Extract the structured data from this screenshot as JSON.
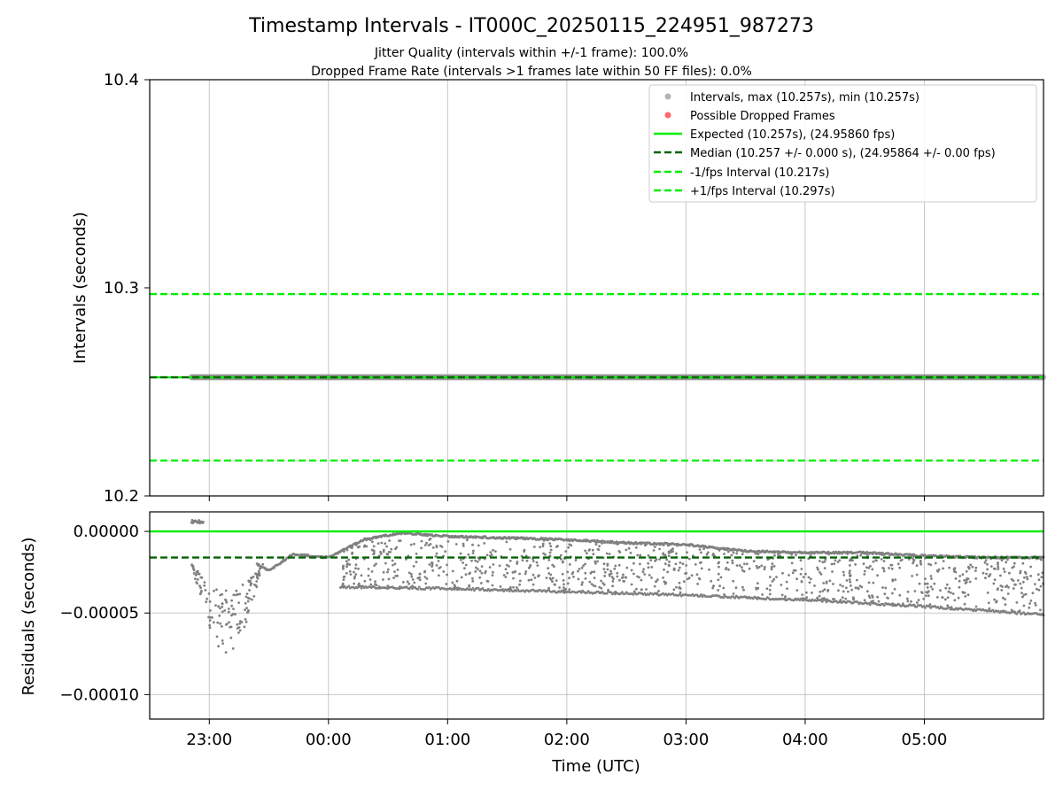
{
  "chart_data": {
    "title": "Timestamp Intervals - IT000C_20250115_224951_987273",
    "subtitle_lines": [
      "Jitter Quality (intervals within +/-1 frame): 100.0%",
      "Dropped Frame Rate (intervals >1 frames late within 50 FF files): 0.0%"
    ],
    "xlabel": "Time (UTC)",
    "x_ticks": [
      "23:00",
      "00:00",
      "01:00",
      "02:00",
      "03:00",
      "04:00",
      "05:00"
    ],
    "x_range_hours": [
      -1.5,
      6.0
    ],
    "panels": [
      {
        "type": "scatter",
        "ylabel": "Intervals (seconds)",
        "ylim": [
          10.2,
          10.4
        ],
        "y_ticks": [
          "10.4",
          "10.3",
          "10.2"
        ],
        "grid": "x",
        "legend_position": "top-right",
        "series": [
          {
            "name": "Intervals, max (10.257s), min (10.257s)",
            "kind": "scatter",
            "color": "#808080",
            "x_range_hours": [
              -1.15,
              6.0
            ],
            "y": 10.257
          },
          {
            "name": "Possible Dropped Frames",
            "kind": "scatter",
            "color": "#ff0000",
            "values": []
          },
          {
            "name": "Expected (10.257s), (24.95860 fps)",
            "kind": "hline",
            "style": "solid",
            "color": "#00ee00",
            "y": 10.257
          },
          {
            "name": "Median (10.257 +/- 0.000 s), (24.95864 +/- 0.00 fps)",
            "kind": "hline",
            "style": "dashed",
            "color": "#006400",
            "y": 10.257
          },
          {
            "name": "-1/fps Interval (10.217s)",
            "kind": "hline",
            "style": "dashed",
            "color": "#00ee00",
            "y": 10.217
          },
          {
            "name": "+1/fps Interval (10.297s)",
            "kind": "hline",
            "style": "dashed",
            "color": "#00ee00",
            "y": 10.297
          }
        ]
      },
      {
        "type": "scatter",
        "ylabel": "Residuals (seconds)",
        "ylim": [
          -0.000115,
          1.2e-05
        ],
        "y_ticks": [
          "0.00000",
          "−0.00005",
          "−0.00010"
        ],
        "grid": "both",
        "reference_lines": [
          {
            "kind": "expected",
            "style": "solid",
            "color": "#00ee00",
            "y": 0.0
          },
          {
            "kind": "median",
            "style": "dashed",
            "color": "#006400",
            "y": -1.6e-05
          }
        ],
        "residual_series": {
          "color": "#808080",
          "approx_points": 2500,
          "start_cluster": {
            "x_hours": [
              -1.15,
              -1.05
            ],
            "y": 6e-06
          },
          "upper_envelope_hours": [
            -0.6,
            -0.5,
            -0.3,
            0.0,
            0.3,
            0.6,
            1.0,
            1.5,
            2.0,
            2.5,
            3.0,
            3.5,
            4.0,
            4.5,
            5.0,
            5.5,
            6.0
          ],
          "upper_envelope_values": [
            -2e-05,
            -2.4e-05,
            -1.4e-05,
            -1.6e-05,
            -5e-06,
            -1e-06,
            -3e-06,
            -4e-06,
            -5e-06,
            -7e-06,
            -8e-06,
            -1.2e-05,
            -1.3e-05,
            -1.3e-05,
            -1.5e-05,
            -1.6e-05,
            -1.6e-05
          ],
          "lower_envelope_hours": [
            0.1,
            1.0,
            2.0,
            3.0,
            4.0,
            5.0,
            6.0
          ],
          "lower_envelope_values": [
            -3.4e-05,
            -3.5e-05,
            -3.7e-05,
            -3.9e-05,
            -4.2e-05,
            -4.6e-05,
            -5.1e-05
          ]
        }
      }
    ]
  }
}
